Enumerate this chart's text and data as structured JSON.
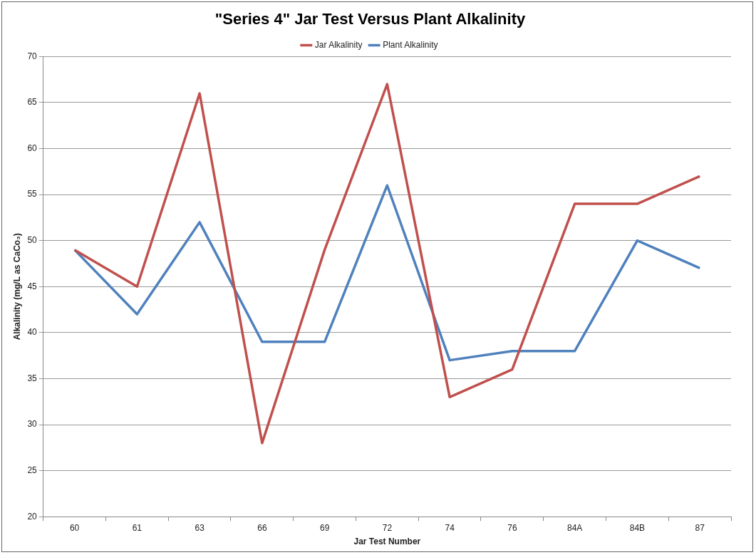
{
  "chart_data": {
    "type": "line",
    "title": "\"Series 4\" Jar Test Versus Plant Alkalinity",
    "xlabel": "Jar Test Number",
    "ylabel": "Alkalinity (mg/L as CaCo₃)",
    "categories": [
      "60",
      "61",
      "63",
      "66",
      "69",
      "72",
      "74",
      "76",
      "84A",
      "84B",
      "87"
    ],
    "series": [
      {
        "name": "Jar Alkalinity",
        "color": "#c0504d",
        "values": [
          49,
          45,
          66,
          28,
          49,
          67,
          33,
          36,
          54,
          54,
          57
        ]
      },
      {
        "name": "Plant Alkalinity",
        "color": "#4f81bd",
        "values": [
          49,
          42,
          52,
          39,
          39,
          56,
          37,
          38,
          38,
          50,
          47
        ]
      }
    ],
    "ylim": [
      20,
      70
    ],
    "yticks": [
      20,
      25,
      30,
      35,
      40,
      45,
      50,
      55,
      60,
      65,
      70
    ],
    "grid": "y",
    "legend": "top",
    "marker": "none",
    "line_style": "solid"
  }
}
